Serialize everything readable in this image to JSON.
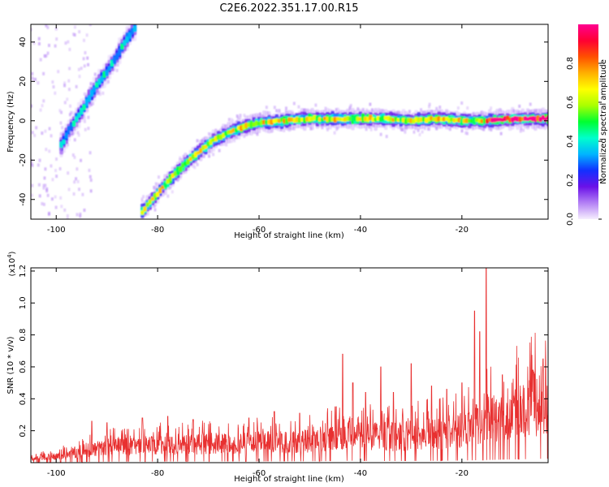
{
  "title": "C2E6.2022.351.17.00.R15",
  "chart_data": [
    {
      "type": "heatmap",
      "xlabel": "Height of straight line (km)",
      "ylabel": "Frequency (Hz)",
      "xlim": [
        -105,
        -3
      ],
      "ylim": [
        -50,
        49
      ],
      "xticks": [
        -100,
        -80,
        -60,
        -40,
        -20
      ],
      "yticks": [
        -40,
        -20,
        0,
        20,
        40
      ],
      "colorbar": {
        "label": "Normalized spectral amplitude",
        "range": [
          0.0,
          1.0
        ],
        "ticks": [
          0.0,
          0.2,
          0.4,
          0.6,
          0.8
        ],
        "tick_labels": [
          "0.0",
          "0.2",
          "0.4",
          "0.6",
          "0.8"
        ],
        "colors": [
          "#f6eefe",
          "#b380f5",
          "#6a11e8",
          "#1230ff",
          "#00b4ff",
          "#00ffcc",
          "#00ff30",
          "#aaff00",
          "#ffff00",
          "#ffb000",
          "#ff5000",
          "#ff0033",
          "#ff0090"
        ]
      },
      "tracks": [
        {
          "points": [
            [
              -99.5,
              -15
            ],
            [
              -97.5,
              -5
            ],
            [
              -95,
              5
            ],
            [
              -92,
              18
            ],
            [
              -90,
              25
            ],
            [
              -88,
              33
            ],
            [
              -86.5,
              40
            ],
            [
              -84.5,
              47
            ]
          ],
          "peak": 0.55,
          "spread_hz": 3.0
        },
        {
          "points": [
            [
              -83.5,
              -48
            ],
            [
              -81,
              -40
            ],
            [
              -78,
              -31
            ],
            [
              -75,
              -23
            ],
            [
              -72,
              -16
            ],
            [
              -69,
              -10
            ],
            [
              -66,
              -6
            ],
            [
              -63,
              -3
            ],
            [
              -60,
              -1
            ],
            [
              -55,
              0
            ],
            [
              -50,
              1
            ],
            [
              -45,
              1
            ],
            [
              -40,
              1
            ],
            [
              -35,
              1
            ],
            [
              -30,
              0
            ],
            [
              -25,
              1
            ],
            [
              -20,
              0
            ],
            [
              -15,
              0
            ],
            [
              -10,
              1
            ],
            [
              -5,
              1
            ],
            [
              -3,
              1
            ]
          ],
          "peak": 0.9,
          "spread_hz": 2.5
        }
      ]
    },
    {
      "type": "line",
      "xlabel": "Height of straight line (km)",
      "ylabel": "SNR (10 * v/v)",
      "y_multiplier": "(x10^4)",
      "y_multiplier_base": "(x10",
      "y_multiplier_exp": "4",
      "y_multiplier_close": ")",
      "xlim": [
        -105,
        -3
      ],
      "ylim": [
        0,
        1.22
      ],
      "xticks": [
        -100,
        -80,
        -60,
        -40,
        -20
      ],
      "yticks": [
        0.2,
        0.4,
        0.6,
        0.8,
        1.0,
        1.2
      ],
      "ytick_labels": [
        "0.2",
        "0.4",
        "0.6",
        "0.8",
        "1.0",
        "1.2"
      ],
      "line_color": "#e83030",
      "baseline": [
        [
          -105,
          0.03
        ],
        [
          -100,
          0.05
        ],
        [
          -95,
          0.09
        ],
        [
          -90,
          0.12
        ],
        [
          -85,
          0.13
        ],
        [
          -80,
          0.14
        ],
        [
          -75,
          0.14
        ],
        [
          -70,
          0.15
        ],
        [
          -65,
          0.15
        ],
        [
          -60,
          0.16
        ],
        [
          -55,
          0.16
        ],
        [
          -50,
          0.17
        ],
        [
          -45,
          0.2
        ],
        [
          -42,
          0.24
        ],
        [
          -40,
          0.22
        ],
        [
          -35,
          0.2
        ],
        [
          -30,
          0.21
        ],
        [
          -25,
          0.23
        ],
        [
          -20,
          0.26
        ],
        [
          -17,
          0.31
        ],
        [
          -15,
          0.33
        ],
        [
          -12,
          0.38
        ],
        [
          -8,
          0.43
        ],
        [
          -5,
          0.47
        ],
        [
          -3,
          0.5
        ]
      ],
      "peaks": [
        [
          -93,
          0.26
        ],
        [
          -90,
          0.25
        ],
        [
          -83,
          0.28
        ],
        [
          -78,
          0.29
        ],
        [
          -73,
          0.27
        ],
        [
          -62,
          0.28
        ],
        [
          -57,
          0.32
        ],
        [
          -52,
          0.31
        ],
        [
          -45,
          0.35
        ],
        [
          -43.5,
          0.68
        ],
        [
          -41.5,
          0.5
        ],
        [
          -39,
          0.44
        ],
        [
          -36,
          0.6
        ],
        [
          -33.5,
          0.44
        ],
        [
          -30,
          0.62
        ],
        [
          -26,
          0.48
        ],
        [
          -23,
          0.46
        ],
        [
          -20,
          0.5
        ],
        [
          -17.5,
          0.95
        ],
        [
          -16.5,
          0.82
        ],
        [
          -15.2,
          1.22
        ],
        [
          -12,
          0.55
        ],
        [
          -6,
          0.58
        ],
        [
          -4,
          0.65
        ]
      ]
    }
  ]
}
